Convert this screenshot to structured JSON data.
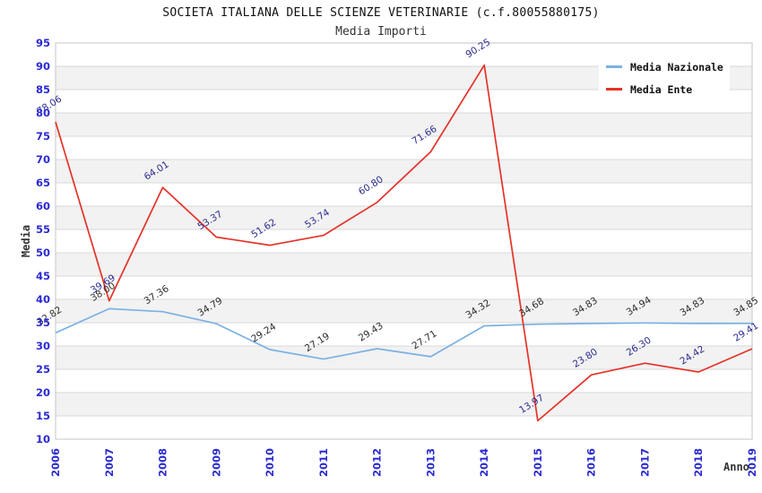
{
  "header": {
    "title": "SOCIETA ITALIANA DELLE SCIENZE VETERINARIE (c.f.80055880175)",
    "subtitle": "Media Importi"
  },
  "chart_data": {
    "type": "line",
    "title": "SOCIETA ITALIANA DELLE SCIENZE VETERINARIE (c.f.80055880175)",
    "subtitle": "Media Importi",
    "xlabel": "Anno",
    "ylabel": "Media",
    "x": [
      2006,
      2007,
      2008,
      2009,
      2010,
      2011,
      2012,
      2013,
      2014,
      2015,
      2016,
      2017,
      2018,
      2019
    ],
    "ylim": [
      10,
      95
    ],
    "ytick_step": 5,
    "grid": "horizontal-only",
    "band_colors": [
      "#ffffff",
      "#f2f2f2"
    ],
    "gridline_color": "#d8d8d8",
    "plot_border_color": "#c4c4c4",
    "tick_label_color": "#2a2ad0",
    "legend_position": "top-right",
    "label_decimals": 2,
    "series": [
      {
        "name": "Media Nazionale",
        "color": "#7ab1e3",
        "label_color": "#2b2b2b",
        "values": [
          32.82,
          38.0,
          37.36,
          34.79,
          29.24,
          27.19,
          29.43,
          27.71,
          34.32,
          34.68,
          34.83,
          34.94,
          34.83,
          34.85
        ]
      },
      {
        "name": "Media Ente",
        "color": "#e53228",
        "label_color": "#2a2a8f",
        "values": [
          78.06,
          39.69,
          64.01,
          53.37,
          51.62,
          53.74,
          60.8,
          71.66,
          90.25,
          13.97,
          23.8,
          26.3,
          24.42,
          29.41
        ]
      }
    ]
  }
}
